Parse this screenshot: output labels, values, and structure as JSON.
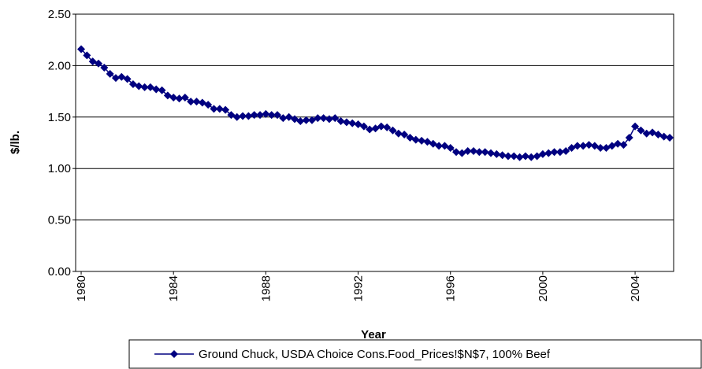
{
  "chart_data": {
    "type": "line",
    "x_label": "Year",
    "y_label": "$/lb.",
    "x": [
      1980,
      1980.25,
      1980.5,
      1980.75,
      1981,
      1981.25,
      1981.5,
      1981.75,
      1982,
      1982.25,
      1982.5,
      1982.75,
      1983,
      1983.25,
      1983.5,
      1983.75,
      1984,
      1984.25,
      1984.5,
      1984.75,
      1985,
      1985.25,
      1985.5,
      1985.75,
      1986,
      1986.25,
      1986.5,
      1986.75,
      1987,
      1987.25,
      1987.5,
      1987.75,
      1988,
      1988.25,
      1988.5,
      1988.75,
      1989,
      1989.25,
      1989.5,
      1989.75,
      1990,
      1990.25,
      1990.5,
      1990.75,
      1991,
      1991.25,
      1991.5,
      1991.75,
      1992,
      1992.25,
      1992.5,
      1992.75,
      1993,
      1993.25,
      1993.5,
      1993.75,
      1994,
      1994.25,
      1994.5,
      1994.75,
      1995,
      1995.25,
      1995.5,
      1995.75,
      1996,
      1996.25,
      1996.5,
      1996.75,
      1997,
      1997.25,
      1997.5,
      1997.75,
      1998,
      1998.25,
      1998.5,
      1998.75,
      1999,
      1999.25,
      1999.5,
      1999.75,
      2000,
      2000.25,
      2000.5,
      2000.75,
      2001,
      2001.25,
      2001.5,
      2001.75,
      2002,
      2002.25,
      2002.5,
      2002.75,
      2003,
      2003.25,
      2003.5,
      2003.75,
      2004,
      2004.25,
      2004.5,
      2004.75,
      2005,
      2005.25,
      2005.5
    ],
    "series": [
      {
        "name": "Ground Chuck, USDA Choice Cons.Food_Prices!$N$7, 100% Beef",
        "color": "#000080",
        "values": [
          2.16,
          2.1,
          2.04,
          2.02,
          1.98,
          1.92,
          1.88,
          1.89,
          1.87,
          1.82,
          1.8,
          1.79,
          1.79,
          1.77,
          1.76,
          1.71,
          1.69,
          1.68,
          1.69,
          1.65,
          1.65,
          1.64,
          1.62,
          1.58,
          1.58,
          1.57,
          1.52,
          1.5,
          1.51,
          1.51,
          1.52,
          1.52,
          1.53,
          1.52,
          1.52,
          1.49,
          1.5,
          1.48,
          1.46,
          1.47,
          1.47,
          1.49,
          1.49,
          1.48,
          1.49,
          1.46,
          1.45,
          1.44,
          1.43,
          1.41,
          1.38,
          1.39,
          1.41,
          1.4,
          1.37,
          1.34,
          1.33,
          1.3,
          1.28,
          1.27,
          1.26,
          1.24,
          1.22,
          1.22,
          1.2,
          1.16,
          1.15,
          1.17,
          1.17,
          1.16,
          1.16,
          1.15,
          1.14,
          1.13,
          1.12,
          1.12,
          1.11,
          1.12,
          1.11,
          1.12,
          1.14,
          1.15,
          1.16,
          1.16,
          1.17,
          1.2,
          1.22,
          1.22,
          1.23,
          1.22,
          1.2,
          1.2,
          1.22,
          1.24,
          1.23,
          1.3,
          1.41,
          1.37,
          1.34,
          1.35,
          1.33,
          1.31,
          1.3
        ]
      }
    ],
    "xlim": [
      1979.76,
      2005.67
    ],
    "xticks": [
      1980,
      1984,
      1988,
      1992,
      1996,
      2000,
      2004
    ],
    "ylim": [
      0,
      2.5
    ],
    "yticks": [
      {
        "value": 0,
        "label": "0.00"
      },
      {
        "value": 0.5,
        "label": "0.50"
      },
      {
        "value": 1,
        "label": "1.00"
      },
      {
        "value": 1.5,
        "label": "1.50"
      },
      {
        "value": 2,
        "label": "2.00"
      },
      {
        "value": 2.5,
        "label": "2.50"
      }
    ],
    "grid": true,
    "legend": "bottom"
  }
}
